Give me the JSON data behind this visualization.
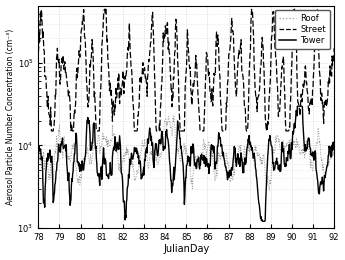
{
  "title": "",
  "xlabel": "JulianDay",
  "ylabel": "Aerosol Particle Number Concentration (cm⁻³)",
  "xlim": [
    78,
    92
  ],
  "ylim_log": [
    1000,
    500000
  ],
  "xticks": [
    78,
    79,
    80,
    81,
    82,
    83,
    84,
    85,
    86,
    87,
    88,
    89,
    90,
    91,
    92
  ],
  "yticks_major": [
    1000,
    10000,
    100000
  ],
  "ytick_labels": [
    "10$^3$",
    "10$^4$",
    "10$^5$"
  ],
  "legend_labels": [
    "Tower",
    "Roof",
    "Street"
  ],
  "background_color": "#ffffff",
  "grid_color": "#aaaaaa",
  "figsize": [
    3.45,
    2.6
  ],
  "dpi": 100,
  "tower_lw": 1.0,
  "roof_lw": 0.7,
  "street_lw": 0.9
}
